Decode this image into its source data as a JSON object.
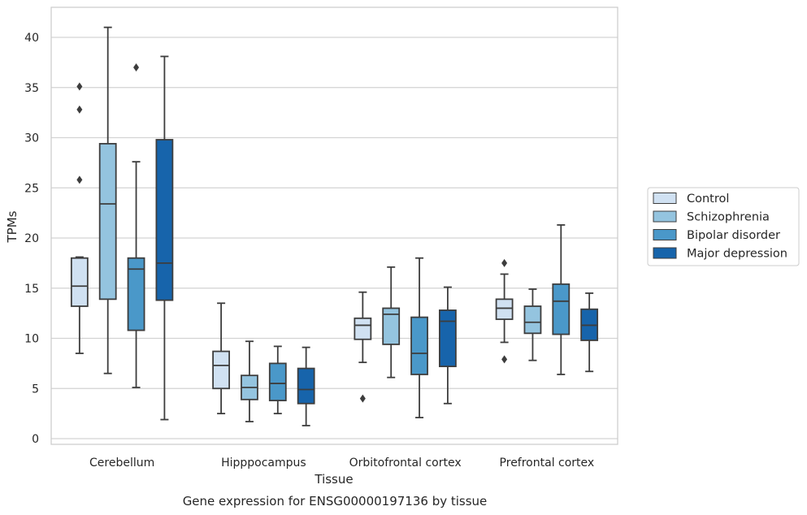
{
  "chart_data": {
    "type": "boxplot",
    "caption": "Gene expression for ENSG00000197136 by tissue",
    "xlabel": "Tissue",
    "ylabel": "TPMs",
    "ylim": [
      -0.5,
      43
    ],
    "yticks": [
      0,
      5,
      10,
      15,
      20,
      25,
      30,
      35,
      40
    ],
    "grid": "horizontal",
    "legend_position": "right",
    "categories": [
      "Cerebellum",
      "Hipppocampus",
      "Orbitofrontal cortex",
      "Prefrontal cortex"
    ],
    "series": [
      {
        "name": "Control",
        "color": "#d0e1f2",
        "boxes": [
          {
            "whisker_low": 8.5,
            "q1": 13.2,
            "median": 15.2,
            "q3": 18.0,
            "whisker_high": 18.1,
            "outliers": [
              25.8,
              32.8,
              35.1
            ]
          },
          {
            "whisker_low": 2.5,
            "q1": 5.0,
            "median": 7.3,
            "q3": 8.7,
            "whisker_high": 13.5,
            "outliers": []
          },
          {
            "whisker_low": 7.6,
            "q1": 9.9,
            "median": 11.3,
            "q3": 12.0,
            "whisker_high": 14.6,
            "outliers": [
              4.0
            ]
          },
          {
            "whisker_low": 9.6,
            "q1": 11.9,
            "median": 13.0,
            "q3": 13.9,
            "whisker_high": 16.4,
            "outliers": [
              7.9,
              17.5
            ]
          }
        ]
      },
      {
        "name": "Schizophrenia",
        "color": "#94c4df",
        "boxes": [
          {
            "whisker_low": 6.5,
            "q1": 13.9,
            "median": 23.4,
            "q3": 29.4,
            "whisker_high": 41.0,
            "outliers": []
          },
          {
            "whisker_low": 1.7,
            "q1": 3.9,
            "median": 5.1,
            "q3": 6.3,
            "whisker_high": 9.7,
            "outliers": []
          },
          {
            "whisker_low": 6.1,
            "q1": 9.4,
            "median": 12.4,
            "q3": 13.0,
            "whisker_high": 17.1,
            "outliers": []
          },
          {
            "whisker_low": 7.8,
            "q1": 10.5,
            "median": 11.6,
            "q3": 13.2,
            "whisker_high": 14.9,
            "outliers": []
          }
        ]
      },
      {
        "name": "Bipolar disorder",
        "color": "#4a98c9",
        "boxes": [
          {
            "whisker_low": 5.1,
            "q1": 10.8,
            "median": 16.9,
            "q3": 18.0,
            "whisker_high": 27.6,
            "outliers": [
              37.0
            ]
          },
          {
            "whisker_low": 2.5,
            "q1": 3.8,
            "median": 5.5,
            "q3": 7.5,
            "whisker_high": 9.2,
            "outliers": []
          },
          {
            "whisker_low": 2.1,
            "q1": 6.4,
            "median": 8.5,
            "q3": 12.1,
            "whisker_high": 18.0,
            "outliers": []
          },
          {
            "whisker_low": 6.4,
            "q1": 10.4,
            "median": 13.7,
            "q3": 15.4,
            "whisker_high": 21.3,
            "outliers": []
          }
        ]
      },
      {
        "name": "Major depression",
        "color": "#1764ab",
        "boxes": [
          {
            "whisker_low": 1.9,
            "q1": 13.8,
            "median": 17.5,
            "q3": 29.8,
            "whisker_high": 38.1,
            "outliers": []
          },
          {
            "whisker_low": 1.3,
            "q1": 3.5,
            "median": 4.9,
            "q3": 7.0,
            "whisker_high": 9.1,
            "outliers": []
          },
          {
            "whisker_low": 3.5,
            "q1": 7.2,
            "median": 11.7,
            "q3": 12.8,
            "whisker_high": 15.1,
            "outliers": []
          },
          {
            "whisker_low": 6.7,
            "q1": 9.8,
            "median": 11.3,
            "q3": 12.9,
            "whisker_high": 14.5,
            "outliers": []
          }
        ]
      }
    ]
  }
}
